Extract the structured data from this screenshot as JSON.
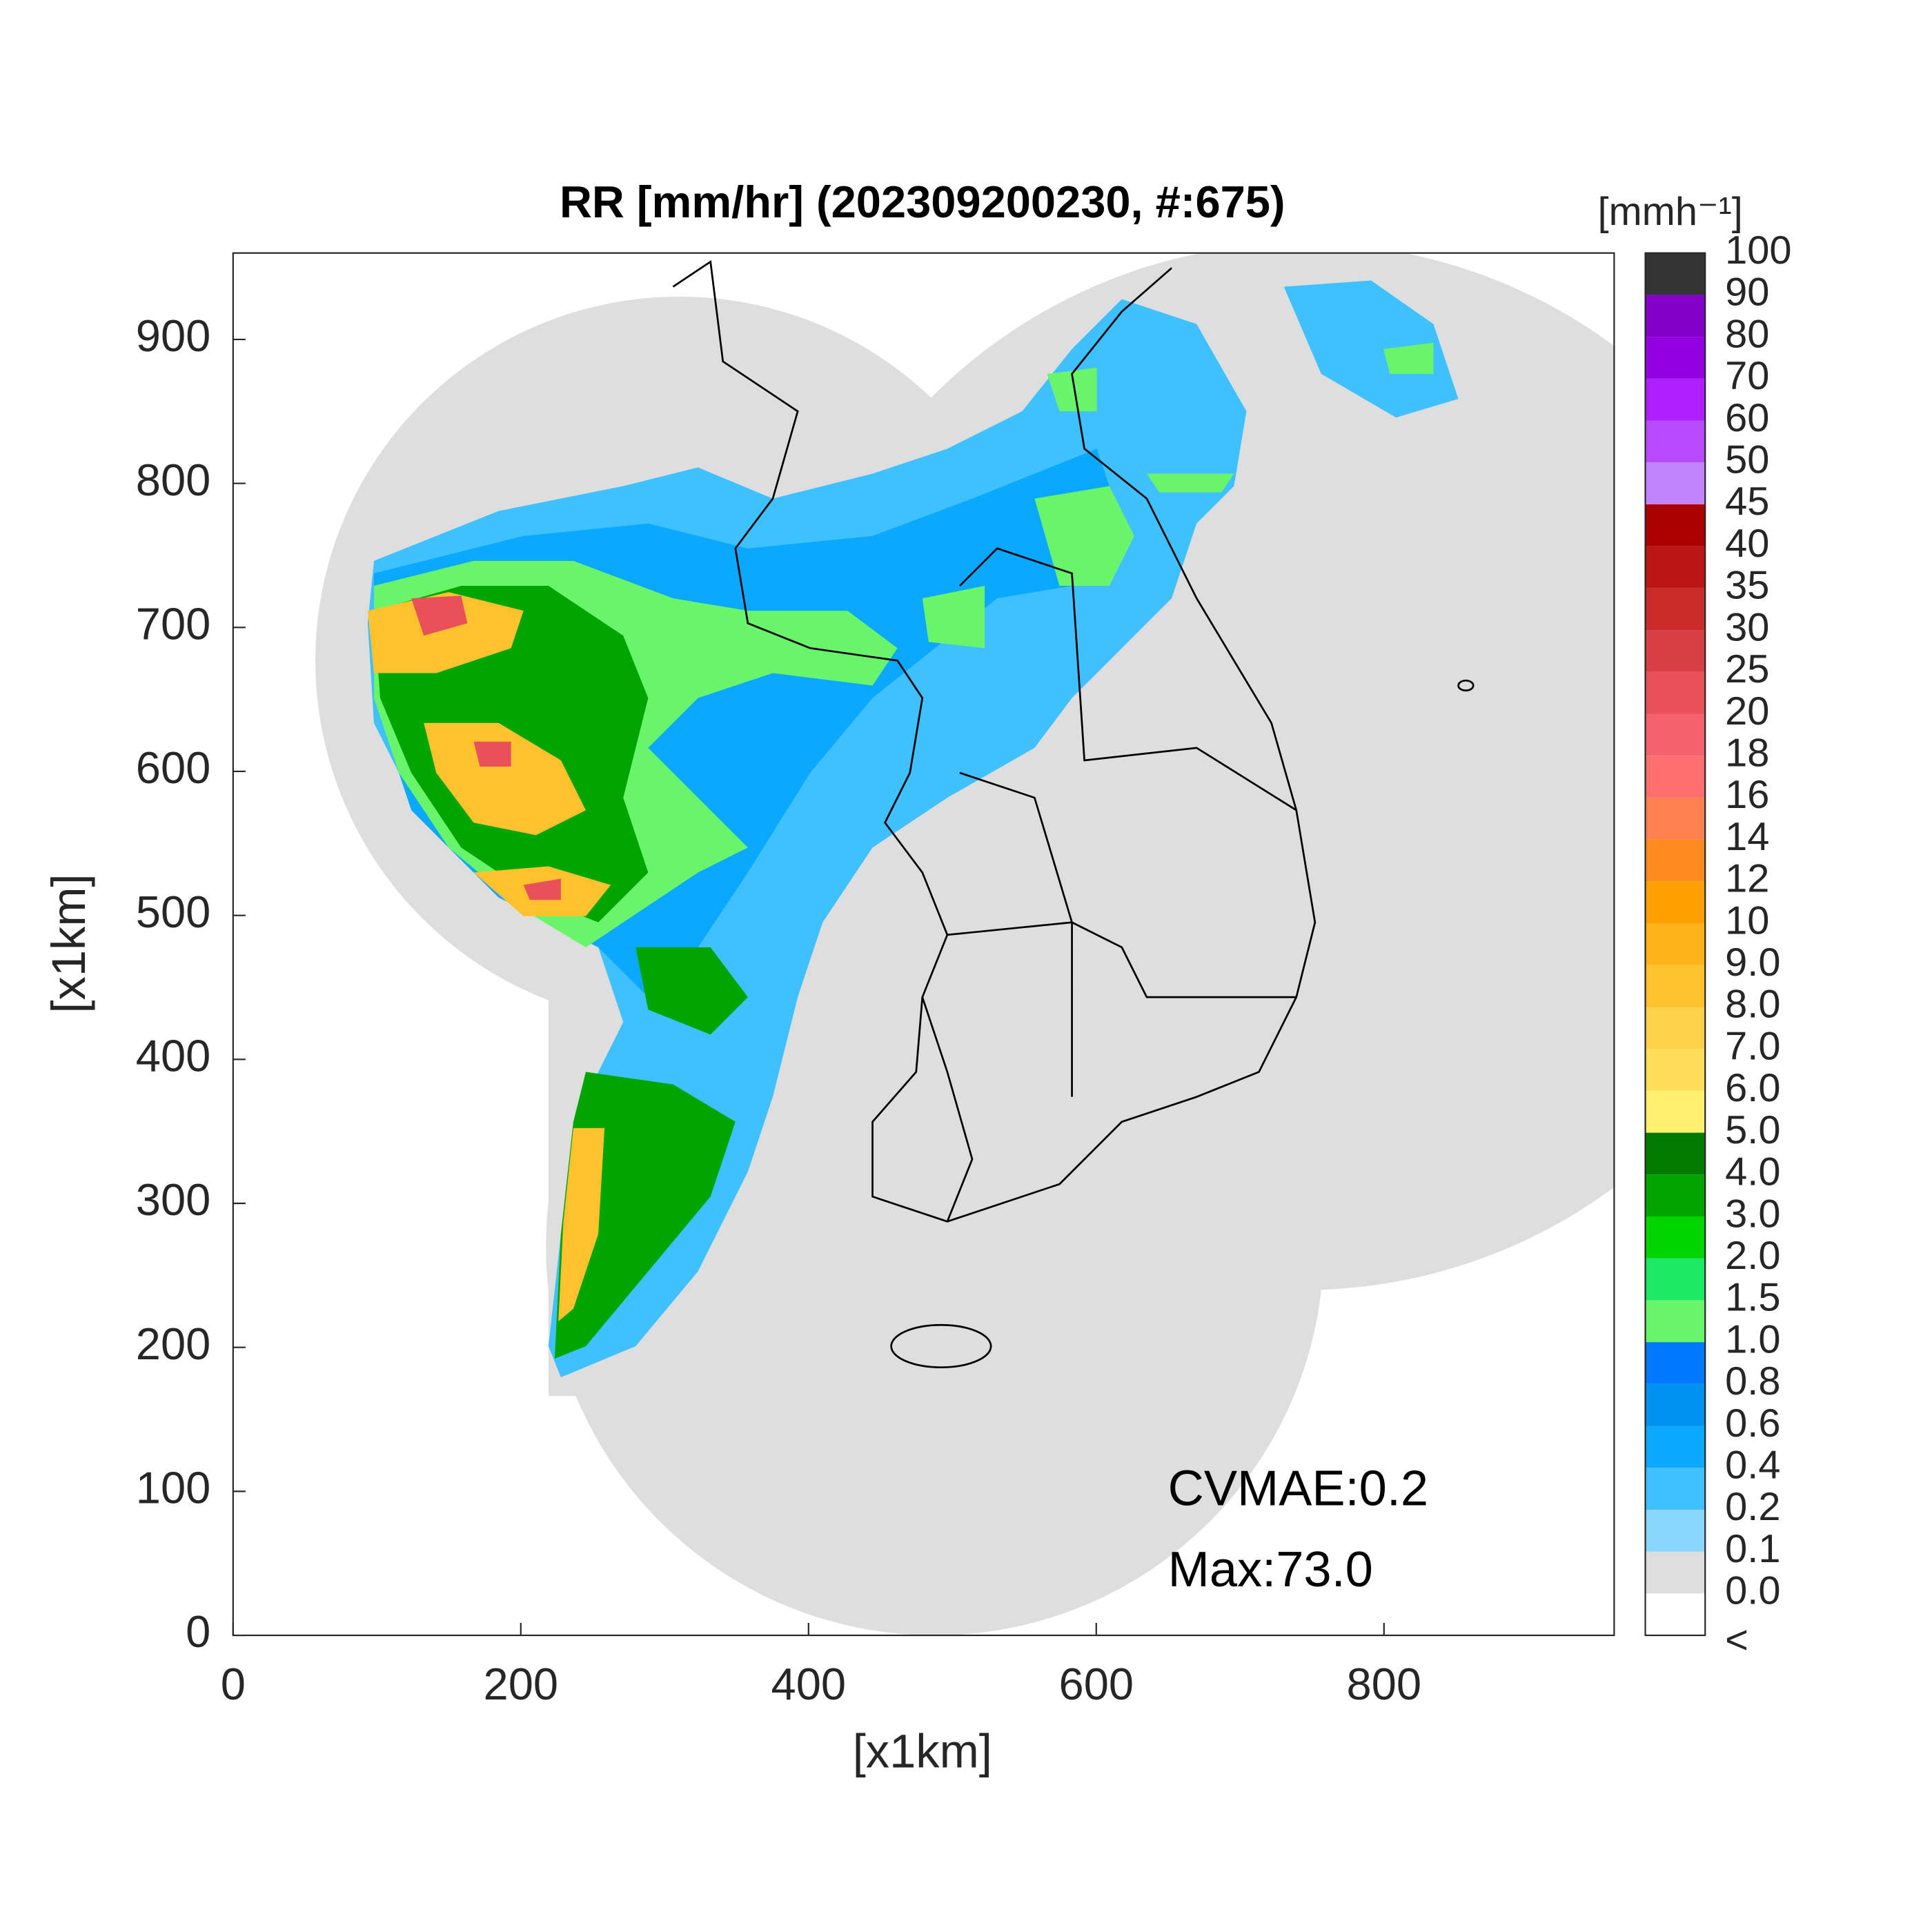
{
  "title": "RR [mm/hr] (202309200230, #:675)",
  "x_axis": {
    "label": "[x1km]",
    "lim": [
      0,
      960
    ],
    "ticks": [
      0,
      200,
      400,
      600,
      800
    ]
  },
  "y_axis": {
    "label": "[x1km]",
    "lim": [
      0,
      960
    ],
    "ticks": [
      0,
      100,
      200,
      300,
      400,
      500,
      600,
      700,
      800,
      900
    ]
  },
  "colorbar": {
    "unit_label": "[mmh⁻¹]",
    "labels": [
      "<",
      "0.0",
      "0.1",
      "0.2",
      "0.4",
      "0.6",
      "0.8",
      "1.0",
      "1.5",
      "2.0",
      "3.0",
      "4.0",
      "5.0",
      "6.0",
      "7.0",
      "8.0",
      "9.0",
      "10",
      "12",
      "14",
      "16",
      "18",
      "20",
      "25",
      "30",
      "35",
      "40",
      "45",
      "50",
      "60",
      "70",
      "80",
      "90",
      "100"
    ],
    "colors": [
      "#ffffff",
      "#dedede",
      "#87d7ff",
      "#3fc1ff",
      "#0aa8ff",
      "#0092f0",
      "#0078ff",
      "#69f56b",
      "#1de964",
      "#00d500",
      "#00a500",
      "#007a00",
      "#fff06f",
      "#ffde59",
      "#ffd04a",
      "#ffc22c",
      "#ffb21a",
      "#ffa000",
      "#ff8a1f",
      "#ff8050",
      "#ff6e6e",
      "#f5616c",
      "#e9505a",
      "#d93d45",
      "#c92a2a",
      "#bb1515",
      "#aa0000",
      "#c283ff",
      "#b94bff",
      "#ae1fff",
      "#9400e0",
      "#8300c8",
      "#333333"
    ]
  },
  "annotations": [
    "CVMAE:0.2",
    "Max:73.0"
  ]
}
